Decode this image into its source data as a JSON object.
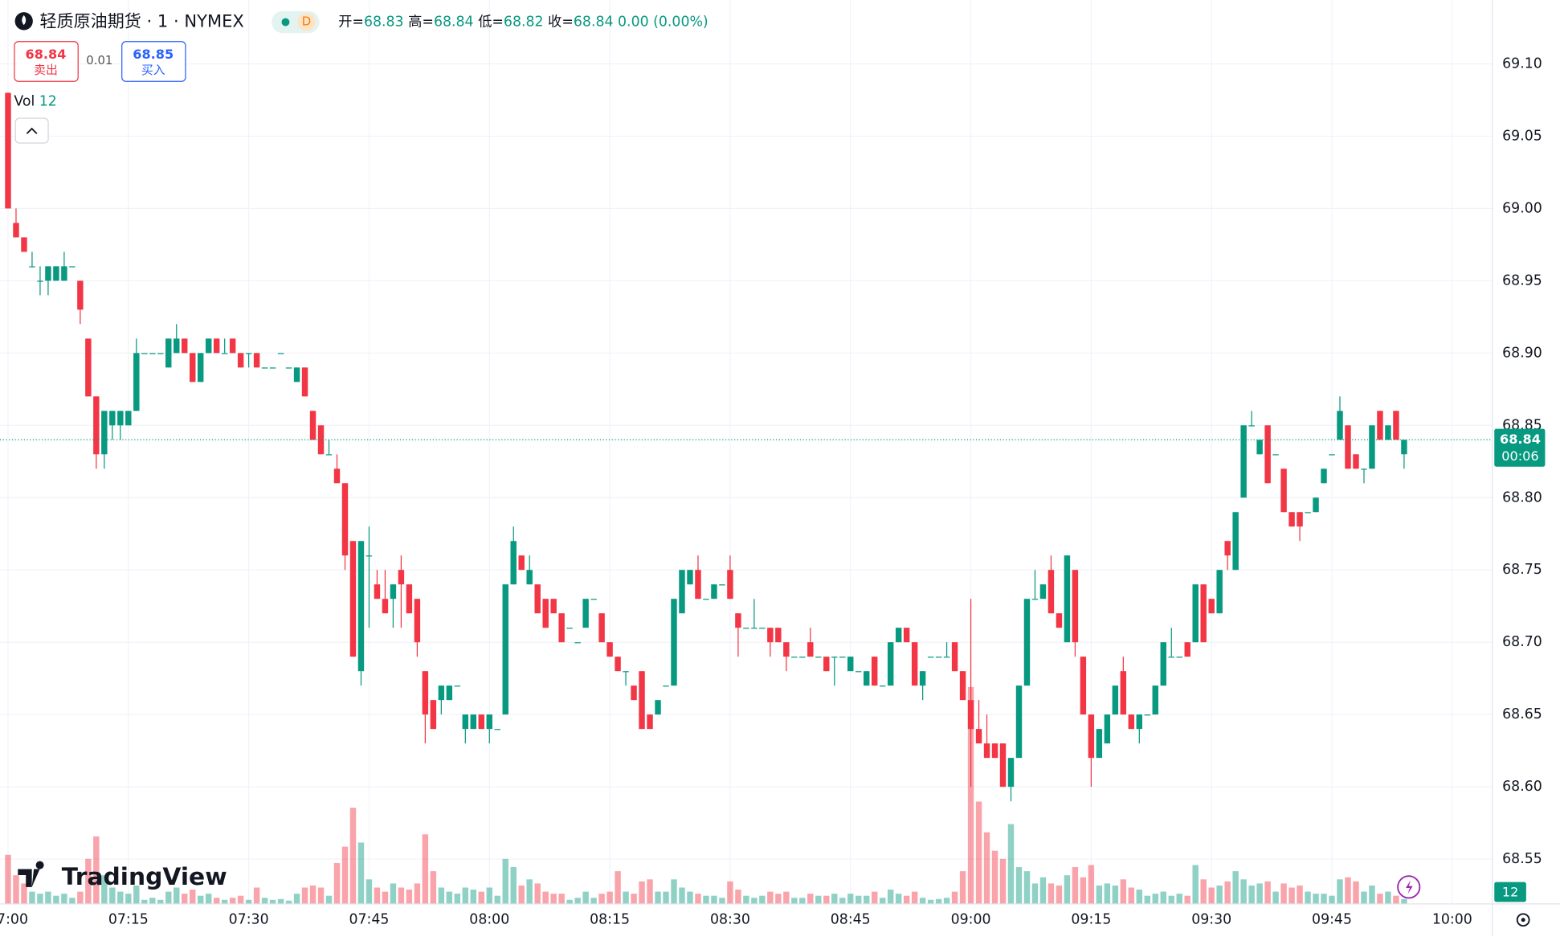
{
  "chart_data": {
    "type": "candlestick",
    "title": "轻质原油期货 · 1 · NYMEX",
    "interval_badge": "D",
    "ohlc_legend": {
      "open_label": "开=",
      "high_label": "高=",
      "low_label": "低=",
      "close_label": "收=",
      "change": "0.00 (0.00%)"
    },
    "trade_panel": {
      "sell_price": 68.84,
      "sell_label": "卖出",
      "spread": 0.01,
      "buy_price": 68.85,
      "buy_label": "买入"
    },
    "volume_label": "Vol",
    "countdown": "00:06",
    "logo_text": "TradingView",
    "up_color": "#089981",
    "down_color": "#f23645",
    "x": [
      "07:00",
      "07:01",
      "07:02",
      "07:03",
      "07:04",
      "07:05",
      "07:06",
      "07:07",
      "07:08",
      "07:09",
      "07:10",
      "07:11",
      "07:12",
      "07:13",
      "07:14",
      "07:15",
      "07:16",
      "07:17",
      "07:18",
      "07:19",
      "07:20",
      "07:21",
      "07:22",
      "07:23",
      "07:24",
      "07:25",
      "07:26",
      "07:27",
      "07:28",
      "07:29",
      "07:30",
      "07:31",
      "07:32",
      "07:33",
      "07:34",
      "07:35",
      "07:36",
      "07:37",
      "07:38",
      "07:39",
      "07:40",
      "07:41",
      "07:42",
      "07:43",
      "07:44",
      "07:45",
      "07:46",
      "07:47",
      "07:48",
      "07:49",
      "07:50",
      "07:51",
      "07:52",
      "07:53",
      "07:54",
      "07:55",
      "07:56",
      "07:57",
      "07:58",
      "07:59",
      "08:00",
      "08:01",
      "08:02",
      "08:03",
      "08:04",
      "08:05",
      "08:06",
      "08:07",
      "08:08",
      "08:09",
      "08:10",
      "08:11",
      "08:12",
      "08:13",
      "08:14",
      "08:15",
      "08:16",
      "08:17",
      "08:18",
      "08:19",
      "08:20",
      "08:21",
      "08:22",
      "08:23",
      "08:24",
      "08:25",
      "08:26",
      "08:27",
      "08:28",
      "08:29",
      "08:30",
      "08:31",
      "08:32",
      "08:33",
      "08:34",
      "08:35",
      "08:36",
      "08:37",
      "08:38",
      "08:39",
      "08:40",
      "08:41",
      "08:42",
      "08:43",
      "08:44",
      "08:45",
      "08:46",
      "08:47",
      "08:48",
      "08:49",
      "08:50",
      "08:51",
      "08:52",
      "08:53",
      "08:54",
      "08:55",
      "08:56",
      "08:57",
      "08:58",
      "08:59",
      "09:00",
      "09:01",
      "09:02",
      "09:03",
      "09:04",
      "09:05",
      "09:06",
      "09:07",
      "09:08",
      "09:09",
      "09:10",
      "09:11",
      "09:12",
      "09:13",
      "09:14",
      "09:15",
      "09:16",
      "09:17",
      "09:18",
      "09:19",
      "09:20",
      "09:21",
      "09:22",
      "09:23",
      "09:24",
      "09:25",
      "09:26",
      "09:27",
      "09:28",
      "09:29",
      "09:30",
      "09:31",
      "09:32",
      "09:33",
      "09:34",
      "09:35",
      "09:36",
      "09:37",
      "09:38",
      "09:39",
      "09:40",
      "09:41",
      "09:42",
      "09:43",
      "09:44",
      "09:45",
      "09:46",
      "09:47",
      "09:48",
      "09:49",
      "09:50",
      "09:51",
      "09:52",
      "09:53",
      "09:54"
    ],
    "open": [
      69.08,
      68.99,
      68.98,
      68.96,
      68.95,
      68.95,
      68.95,
      68.95,
      68.96,
      68.95,
      68.91,
      68.87,
      68.83,
      68.85,
      68.85,
      68.85,
      68.86,
      68.9,
      68.9,
      68.9,
      68.89,
      68.9,
      68.91,
      68.9,
      68.88,
      68.9,
      68.91,
      68.9,
      68.91,
      68.9,
      68.9,
      68.9,
      68.89,
      68.89,
      68.9,
      68.89,
      68.88,
      68.89,
      68.86,
      68.85,
      68.83,
      68.82,
      68.81,
      68.77,
      68.68,
      68.76,
      68.74,
      68.73,
      68.73,
      68.75,
      68.74,
      68.73,
      68.68,
      68.66,
      68.66,
      68.66,
      68.67,
      68.64,
      68.64,
      68.65,
      68.64,
      68.64,
      68.65,
      68.74,
      68.76,
      68.74,
      68.74,
      68.73,
      68.73,
      68.72,
      68.71,
      68.7,
      68.71,
      68.73,
      68.72,
      68.7,
      68.69,
      68.68,
      68.67,
      68.68,
      68.65,
      68.65,
      68.67,
      68.67,
      68.72,
      68.74,
      68.75,
      68.73,
      68.73,
      68.74,
      68.75,
      68.72,
      68.71,
      68.71,
      68.71,
      68.71,
      68.71,
      68.7,
      68.69,
      68.69,
      68.7,
      68.69,
      68.69,
      68.69,
      68.69,
      68.68,
      68.68,
      68.67,
      68.69,
      68.67,
      68.67,
      68.7,
      68.71,
      68.7,
      68.67,
      68.69,
      68.69,
      68.69,
      68.7,
      68.68,
      68.66,
      68.64,
      68.63,
      68.63,
      68.63,
      68.6,
      68.62,
      68.67,
      68.73,
      68.73,
      68.75,
      68.72,
      68.7,
      68.75,
      68.69,
      68.65,
      68.62,
      68.63,
      68.65,
      68.68,
      68.65,
      68.64,
      68.65,
      68.65,
      68.67,
      68.69,
      68.69,
      68.7,
      68.7,
      68.74,
      68.73,
      68.72,
      68.77,
      68.75,
      68.8,
      68.85,
      68.83,
      68.85,
      68.83,
      68.82,
      68.79,
      68.79,
      68.79,
      68.79,
      68.81,
      68.83,
      68.84,
      68.85,
      68.83,
      68.82,
      68.82,
      68.86,
      68.84,
      68.86,
      68.83
    ],
    "high": [
      69.08,
      69.0,
      68.98,
      68.97,
      68.96,
      68.96,
      68.96,
      68.97,
      68.96,
      68.95,
      68.91,
      68.87,
      68.86,
      68.86,
      68.86,
      68.86,
      68.91,
      68.9,
      68.9,
      68.9,
      68.91,
      68.92,
      68.91,
      68.9,
      68.9,
      68.91,
      68.91,
      68.91,
      68.91,
      68.9,
      68.9,
      68.9,
      68.89,
      68.89,
      68.9,
      68.89,
      68.89,
      68.89,
      68.86,
      68.85,
      68.84,
      68.83,
      68.81,
      68.77,
      68.77,
      68.78,
      68.75,
      68.75,
      68.74,
      68.76,
      68.74,
      68.73,
      68.68,
      68.66,
      68.67,
      68.67,
      68.67,
      68.65,
      68.65,
      68.65,
      68.65,
      68.64,
      68.74,
      68.78,
      68.76,
      68.76,
      68.74,
      68.73,
      68.73,
      68.72,
      68.71,
      68.7,
      68.73,
      68.73,
      68.72,
      68.7,
      68.69,
      68.68,
      68.67,
      68.68,
      68.65,
      68.66,
      68.67,
      68.73,
      68.75,
      68.75,
      68.76,
      68.73,
      68.74,
      68.74,
      68.76,
      68.72,
      68.71,
      68.73,
      68.71,
      68.71,
      68.71,
      68.7,
      68.69,
      68.69,
      68.71,
      68.69,
      68.69,
      68.69,
      68.69,
      68.69,
      68.68,
      68.68,
      68.69,
      68.67,
      68.7,
      68.71,
      68.71,
      68.7,
      68.68,
      68.69,
      68.69,
      68.7,
      68.7,
      68.68,
      68.73,
      68.66,
      68.65,
      68.63,
      68.63,
      68.62,
      68.67,
      68.73,
      68.75,
      68.74,
      68.76,
      68.72,
      68.76,
      68.75,
      68.69,
      68.65,
      68.64,
      68.65,
      68.67,
      68.69,
      68.65,
      68.65,
      68.65,
      68.67,
      68.7,
      68.71,
      68.69,
      68.7,
      68.74,
      68.74,
      68.73,
      68.75,
      68.77,
      68.79,
      68.85,
      68.86,
      68.84,
      68.85,
      68.83,
      68.82,
      68.79,
      68.79,
      68.79,
      68.8,
      68.82,
      68.83,
      68.87,
      68.85,
      68.83,
      68.82,
      68.85,
      68.86,
      68.85,
      68.86,
      68.84
    ],
    "low": [
      69.0,
      68.98,
      68.97,
      68.96,
      68.94,
      68.94,
      68.95,
      68.95,
      68.96,
      68.92,
      68.87,
      68.82,
      68.82,
      68.84,
      68.84,
      68.85,
      68.86,
      68.9,
      68.9,
      68.9,
      68.89,
      68.9,
      68.9,
      68.88,
      68.88,
      68.9,
      68.9,
      68.9,
      68.9,
      68.89,
      68.89,
      68.89,
      68.89,
      68.89,
      68.9,
      68.89,
      68.88,
      68.87,
      68.84,
      68.83,
      68.83,
      68.81,
      68.75,
      68.69,
      68.67,
      68.71,
      68.73,
      68.72,
      68.71,
      68.71,
      68.72,
      68.69,
      68.63,
      68.64,
      68.65,
      68.66,
      68.67,
      68.63,
      68.64,
      68.64,
      68.63,
      68.64,
      68.65,
      68.74,
      68.75,
      68.74,
      68.72,
      68.71,
      68.72,
      68.7,
      68.71,
      68.7,
      68.71,
      68.73,
      68.7,
      68.69,
      68.68,
      68.67,
      68.66,
      68.64,
      68.64,
      68.65,
      68.67,
      68.67,
      68.72,
      68.74,
      68.73,
      68.73,
      68.73,
      68.74,
      68.73,
      68.69,
      68.71,
      68.71,
      68.71,
      68.69,
      68.7,
      68.68,
      68.69,
      68.69,
      68.69,
      68.69,
      68.68,
      68.67,
      68.69,
      68.68,
      68.68,
      68.67,
      68.67,
      68.67,
      68.67,
      68.7,
      68.7,
      68.67,
      68.66,
      68.69,
      68.69,
      68.69,
      68.68,
      68.66,
      68.6,
      68.63,
      68.62,
      68.62,
      68.6,
      68.59,
      68.62,
      68.67,
      68.73,
      68.73,
      68.72,
      68.71,
      68.7,
      68.69,
      68.65,
      68.6,
      68.62,
      68.63,
      68.65,
      68.65,
      68.64,
      68.63,
      68.65,
      68.65,
      68.67,
      68.69,
      68.69,
      68.69,
      68.7,
      68.7,
      68.72,
      68.72,
      68.75,
      68.75,
      68.8,
      68.85,
      68.83,
      68.81,
      68.83,
      68.79,
      68.78,
      68.77,
      68.79,
      68.79,
      68.81,
      68.83,
      68.84,
      68.82,
      68.82,
      68.81,
      68.82,
      68.84,
      68.84,
      68.84,
      68.82
    ],
    "close": [
      69.0,
      68.98,
      68.97,
      68.96,
      68.95,
      68.96,
      68.96,
      68.96,
      68.96,
      68.93,
      68.87,
      68.83,
      68.86,
      68.86,
      68.86,
      68.86,
      68.9,
      68.9,
      68.9,
      68.9,
      68.91,
      68.91,
      68.9,
      68.88,
      68.9,
      68.91,
      68.9,
      68.9,
      68.9,
      68.89,
      68.9,
      68.89,
      68.89,
      68.89,
      68.9,
      68.89,
      68.89,
      68.87,
      68.84,
      68.83,
      68.83,
      68.81,
      68.76,
      68.69,
      68.77,
      68.76,
      68.73,
      68.72,
      68.74,
      68.74,
      68.72,
      68.7,
      68.65,
      68.64,
      68.67,
      68.67,
      68.67,
      68.65,
      68.65,
      68.64,
      68.65,
      68.64,
      68.74,
      68.77,
      68.75,
      68.75,
      68.72,
      68.71,
      68.72,
      68.7,
      68.71,
      68.7,
      68.73,
      68.73,
      68.7,
      68.69,
      68.68,
      68.68,
      68.66,
      68.64,
      68.64,
      68.66,
      68.67,
      68.73,
      68.75,
      68.75,
      68.73,
      68.73,
      68.74,
      68.74,
      68.73,
      68.71,
      68.71,
      68.71,
      68.71,
      68.7,
      68.7,
      68.69,
      68.69,
      68.69,
      68.69,
      68.69,
      68.68,
      68.69,
      68.69,
      68.69,
      68.68,
      68.68,
      68.67,
      68.67,
      68.7,
      68.71,
      68.7,
      68.67,
      68.68,
      68.69,
      68.69,
      68.69,
      68.68,
      68.66,
      68.64,
      68.63,
      68.62,
      68.62,
      68.6,
      68.62,
      68.67,
      68.73,
      68.73,
      68.74,
      68.72,
      68.71,
      68.76,
      68.7,
      68.65,
      68.62,
      68.64,
      68.65,
      68.67,
      68.65,
      68.64,
      68.65,
      68.65,
      68.67,
      68.7,
      68.69,
      68.69,
      68.69,
      68.74,
      68.7,
      68.72,
      68.75,
      68.76,
      68.79,
      68.85,
      68.85,
      68.84,
      68.81,
      68.83,
      68.79,
      68.78,
      68.78,
      68.79,
      68.8,
      68.82,
      68.83,
      68.86,
      68.82,
      68.82,
      68.82,
      68.85,
      68.84,
      68.85,
      68.84,
      68.84
    ],
    "volume": [
      120,
      70,
      50,
      30,
      25,
      30,
      20,
      25,
      15,
      30,
      110,
      165,
      70,
      40,
      30,
      25,
      45,
      10,
      15,
      10,
      30,
      40,
      25,
      35,
      20,
      25,
      15,
      10,
      15,
      20,
      10,
      40,
      15,
      10,
      12,
      8,
      25,
      40,
      45,
      40,
      20,
      100,
      140,
      235,
      150,
      60,
      40,
      30,
      50,
      40,
      35,
      50,
      170,
      80,
      40,
      30,
      25,
      40,
      35,
      30,
      40,
      20,
      110,
      90,
      45,
      60,
      50,
      30,
      25,
      25,
      10,
      15,
      30,
      15,
      25,
      30,
      80,
      30,
      25,
      55,
      60,
      30,
      30,
      60,
      40,
      30,
      25,
      20,
      20,
      15,
      55,
      35,
      20,
      15,
      20,
      30,
      25,
      30,
      15,
      15,
      25,
      20,
      20,
      25,
      15,
      25,
      20,
      20,
      30,
      15,
      35,
      25,
      20,
      30,
      15,
      10,
      12,
      15,
      30,
      80,
      530,
      250,
      175,
      130,
      110,
      195,
      90,
      80,
      50,
      65,
      50,
      45,
      70,
      90,
      65,
      95,
      45,
      50,
      45,
      60,
      40,
      35,
      20,
      25,
      30,
      20,
      25,
      20,
      95,
      60,
      40,
      45,
      55,
      80,
      60,
      45,
      50,
      55,
      30,
      50,
      40,
      45,
      30,
      25,
      25,
      20,
      60,
      65,
      55,
      30,
      45,
      25,
      30,
      20,
      12
    ],
    "xlim": [
      "06:59",
      "10:05"
    ],
    "xticks": [
      "07:00",
      "07:15",
      "07:30",
      "07:45",
      "08:00",
      "08:15",
      "08:30",
      "08:45",
      "09:00",
      "09:15",
      "09:30",
      "09:45",
      "10:00"
    ],
    "ylim": [
      68.519,
      69.144
    ],
    "yticks": [
      {
        "value": 68.55,
        "label": "68.55"
      },
      {
        "value": 68.6,
        "label": "68.60"
      },
      {
        "value": 68.65,
        "label": "68.65"
      },
      {
        "value": 68.7,
        "label": "68.70"
      },
      {
        "value": 68.75,
        "label": "68.75"
      },
      {
        "value": 68.8,
        "label": "68.80"
      },
      {
        "value": 68.85,
        "label": "68.85"
      },
      {
        "value": 68.9,
        "label": "68.90"
      },
      {
        "value": 68.95,
        "label": "68.95"
      },
      {
        "value": 69.0,
        "label": "69.00"
      },
      {
        "value": 69.05,
        "label": "69.05"
      },
      {
        "value": 69.1,
        "label": "69.10"
      }
    ],
    "grid": true
  }
}
